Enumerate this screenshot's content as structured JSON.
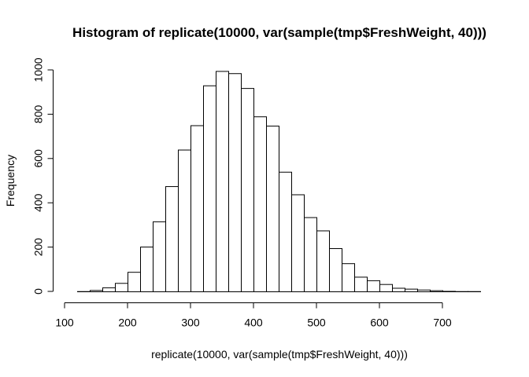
{
  "chart_data": {
    "type": "bar",
    "title": "Histogram of replicate(10000, var(sample(tmp$FreshWeight, 40)))",
    "xlabel": "replicate(10000, var(sample(tmp$FreshWeight, 40)))",
    "ylabel": "Frequency",
    "xlim": [
      100,
      760
    ],
    "ylim": [
      0,
      1000
    ],
    "bin_width": 20,
    "bin_start": 120,
    "values": [
      1,
      6,
      18,
      38,
      88,
      202,
      316,
      475,
      640,
      750,
      930,
      995,
      985,
      918,
      790,
      748,
      540,
      438,
      335,
      275,
      195,
      127,
      66,
      50,
      33,
      16,
      12,
      8,
      5,
      2,
      1,
      1
    ],
    "x_ticks": [
      100,
      200,
      300,
      400,
      500,
      600,
      700
    ],
    "y_ticks": [
      0,
      200,
      400,
      600,
      800,
      1000
    ],
    "grid": false
  }
}
